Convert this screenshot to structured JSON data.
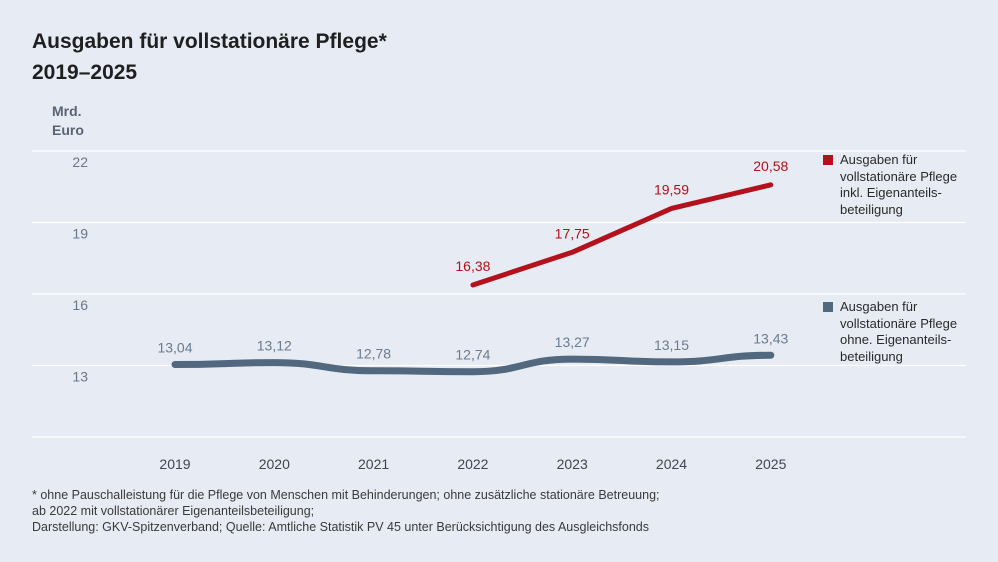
{
  "title_line1": "Ausgaben für vollstationäre Pflege*",
  "title_line2": "2019–2025",
  "unit_line1": "Mrd.",
  "unit_line2": "Euro",
  "colors": {
    "series_incl": "#b3111b",
    "series_excl": "#51687f",
    "grid": "#ffffff",
    "axis_text": "#6b7787"
  },
  "legend": [
    {
      "text": "Ausgaben für\nvollstationäre Pflege\ninkl. Eigenanteils-\nbeteiligung"
    },
    {
      "text": "Ausgaben für\nvollstationäre Pflege\nohne. Eigenanteils-\nbeteiligung"
    }
  ],
  "footnote": [
    "* ohne Pauschalleistung für die Pflege von Menschen mit Behinderungen; ohne zusätzliche stationäre Betreuung;",
    "ab 2022 mit vollstationärer Eigenanteilsbeteiligung;",
    "Darstellung: GKV-Spitzenverband; Quelle: Amtliche Statistik PV 45 unter Berücksichtigung des Ausgleichsfonds"
  ],
  "chart_data": {
    "type": "line",
    "title": "Ausgaben für vollstationäre Pflege* 2019–2025",
    "ylabel": "Mrd. Euro",
    "xlabel": "",
    "categories": [
      "2019",
      "2020",
      "2021",
      "2022",
      "2023",
      "2024",
      "2025"
    ],
    "yticks": [
      13,
      16,
      19,
      22
    ],
    "ytick_labels": [
      "13",
      "16",
      "19",
      "22"
    ],
    "ylim": [
      10,
      22
    ],
    "grid": true,
    "legend_position": "right",
    "series": [
      {
        "name": "Ausgaben für vollstationäre Pflege inkl. Eigenanteilsbeteiligung",
        "values": [
          null,
          null,
          null,
          16.38,
          17.75,
          19.59,
          20.58
        ],
        "labels": [
          null,
          null,
          null,
          "16,38",
          "17,75",
          "19,59",
          "20,58"
        ]
      },
      {
        "name": "Ausgaben für vollstationäre Pflege ohne. Eigenanteilsbeteiligung",
        "values": [
          13.04,
          13.12,
          12.78,
          12.74,
          13.27,
          13.15,
          13.43
        ],
        "labels": [
          "13,04",
          "13,12",
          "12,78",
          "12,74",
          "13,27",
          "13,15",
          "13,43"
        ]
      }
    ]
  }
}
